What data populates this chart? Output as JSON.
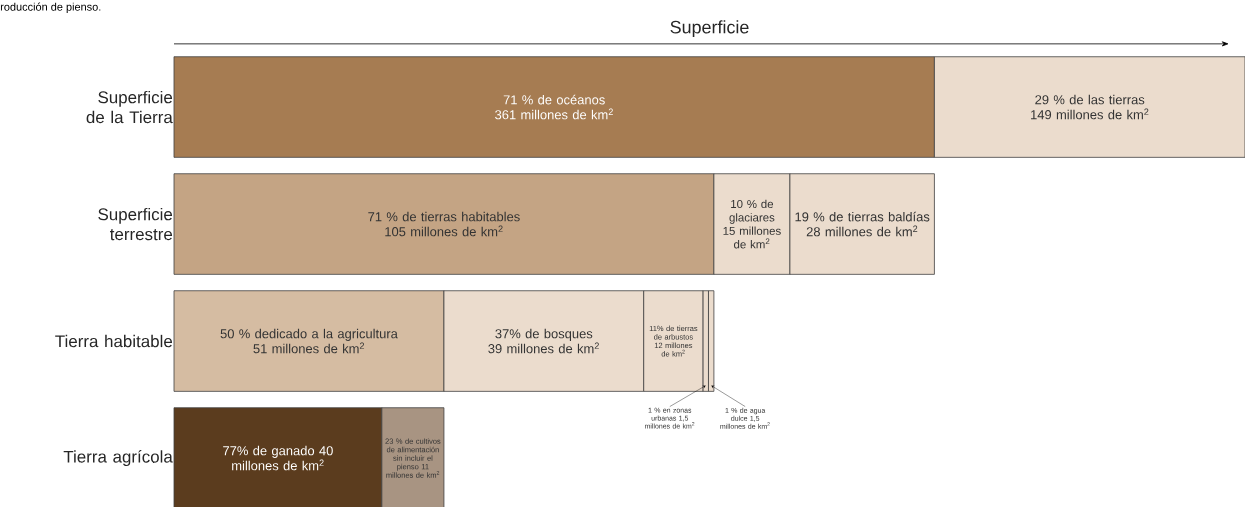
{
  "chart_data": [
    {
      "type": "bar",
      "orientation": "horizontal",
      "stacked": true,
      "xlim": [
        0,
        100
      ],
      "xlabel": "Superficie",
      "annotations": [
        "roducción de pienso."
      ],
      "categories": [
        "Superficie de la Tierra"
      ],
      "series": [
        {
          "color": "#a67c52",
          "values": [
            71
          ],
          "value_labels": [
            "71 % de océanos 361 millones de km$^{2}$"
          ]
        },
        {
          "color": "#ebdccd",
          "values": [
            29
          ],
          "value_labels": [
            "29 % de las tierras 149 millones de km$^{2}$"
          ]
        }
      ]
    },
    {
      "type": "bar",
      "orientation": "horizontal",
      "stacked": true,
      "xlim": [
        0,
        100
      ],
      "categories": [
        "Superficie terrestre"
      ],
      "series": [
        {
          "color": "#c4a484",
          "values": [
            71
          ],
          "value_labels": [
            "71 % de tierras habitables 105 millones de km$^{2}$"
          ]
        },
        {
          "color": "#ebdccd",
          "values": [
            10
          ],
          "value_labels": [
            "10 % de glaciares 15 millones de km$^{2}$"
          ]
        },
        {
          "color": "#ebdccd",
          "values": [
            19
          ],
          "value_labels": [
            "19 % de tierras baldías 28 millones de km$^{2}$"
          ]
        }
      ]
    },
    {
      "type": "bar",
      "orientation": "horizontal",
      "stacked": true,
      "xlim": [
        0,
        100
      ],
      "categories": [
        "Tierra habitable"
      ],
      "series": [
        {
          "color": "#d5bca2",
          "values": [
            50
          ],
          "value_labels": [
            "50 % dedicado a la agricultura 51 millones de km$^{2}$"
          ]
        },
        {
          "color": "#ebdccd",
          "values": [
            37
          ],
          "value_labels": [
            "37% de bosques 39 millones de km$^{2}$"
          ]
        },
        {
          "color": "#ebdccd",
          "values": [
            11
          ],
          "value_labels": [
            "11% de tierras de arbustos 12 millones de km$^{2}$"
          ]
        },
        {
          "color": "#ebdccd",
          "values": [
            1
          ],
          "value_labels": [
            "1 % en zonas urbanas 1,5 millones de km$^{2}$"
          ]
        },
        {
          "color": "#ebdccd",
          "values": [
            1
          ],
          "value_labels": [
            "1 % de agua dulce 1,5 millones de km$^{2}$"
          ]
        }
      ]
    },
    {
      "type": "bar",
      "orientation": "horizontal",
      "stacked": true,
      "xlim": [
        0,
        100
      ],
      "categories": [
        "Tierra agrícola"
      ],
      "series": [
        {
          "color": "#5b3c1e",
          "values": [
            77
          ],
          "value_labels": [
            "77% de ganado 40 millones de km$^{2}$"
          ]
        },
        {
          "color": "#a89482",
          "values": [
            23
          ],
          "value_labels": [
            "23 % de cultivos de alimentación sin incluir el pienso 11 millones de km$^{2}$"
          ]
        }
      ]
    }
  ]
}
